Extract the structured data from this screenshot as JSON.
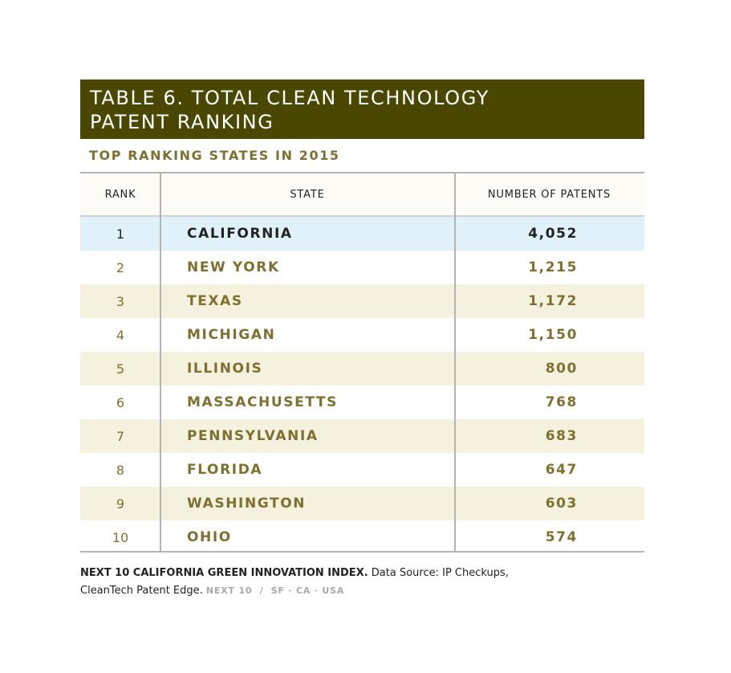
{
  "title": {
    "line1": "TABLE 6. TOTAL CLEAN TECHNOLOGY",
    "line2": "PATENT RANKING"
  },
  "subtitle": "TOP RANKING STATES IN 2015",
  "table": {
    "headers": {
      "rank": "RANK",
      "state": "STATE",
      "patents": "NUMBER OF PATENTS"
    },
    "rows": [
      {
        "rank": "1",
        "state": "CALIFORNIA",
        "patents": "4,052"
      },
      {
        "rank": "2",
        "state": "NEW YORK",
        "patents": "1,215"
      },
      {
        "rank": "3",
        "state": "TEXAS",
        "patents": "1,172"
      },
      {
        "rank": "4",
        "state": "MICHIGAN",
        "patents": "1,150"
      },
      {
        "rank": "5",
        "state": "ILLINOIS",
        "patents": "800"
      },
      {
        "rank": "6",
        "state": "MASSACHUSETTS",
        "patents": "768"
      },
      {
        "rank": "7",
        "state": "PENNSYLVANIA",
        "patents": "683"
      },
      {
        "rank": "8",
        "state": "FLORIDA",
        "patents": "647"
      },
      {
        "rank": "9",
        "state": "WASHINGTON",
        "patents": "603"
      },
      {
        "rank": "10",
        "state": "OHIO",
        "patents": "574"
      }
    ]
  },
  "footer": {
    "index_name": "NEXT 10 CALIFORNIA GREEN INNOVATION INDEX.",
    "source_line1": "Data Source: IP Checkups,",
    "source_line2": "CleanTech Patent Edge.",
    "publisher": "NEXT 10  /  SF · CA · USA"
  },
  "colors": {
    "title_background": "#4a4700",
    "accent_text": "#7d7030",
    "stripe": "#f4f2de",
    "highlight_row": "#e1f1fa"
  }
}
